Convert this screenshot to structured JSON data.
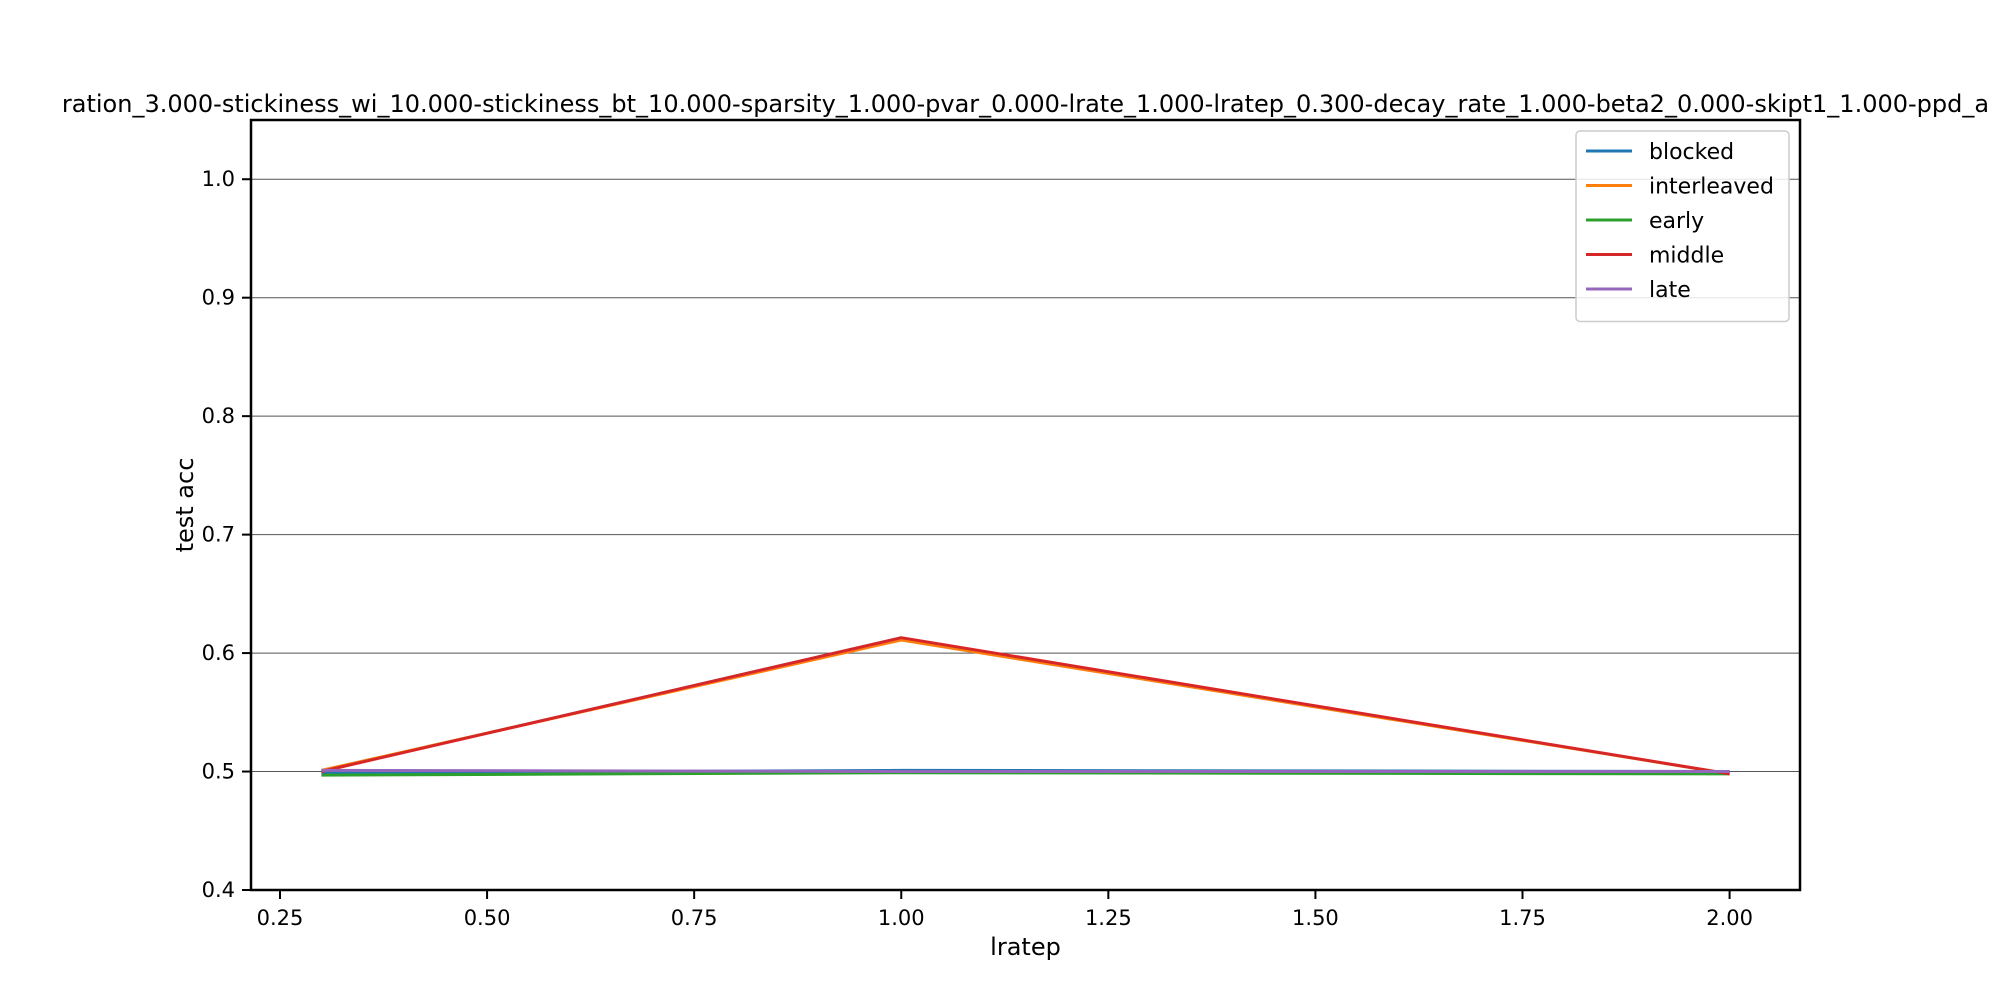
{
  "chart_data": {
    "type": "line",
    "title": "ration_3.000-stickiness_wi_10.000-stickiness_bt_10.000-sparsity_1.000-pvar_0.000-lrate_1.000-lratep_0.300-decay_rate_1.000-beta2_0.000-skipt1_1.000-ppd_a",
    "xlabel": "lratep",
    "ylabel": "test acc",
    "xlim": [
      0.215,
      2.085
    ],
    "ylim": [
      0.4,
      1.05
    ],
    "x_ticks": [
      "0.25",
      "0.50",
      "0.75",
      "1.00",
      "1.25",
      "1.50",
      "1.75",
      "2.00"
    ],
    "y_ticks": [
      "0.4",
      "0.5",
      "0.6",
      "0.7",
      "0.8",
      "0.9",
      "1.0"
    ],
    "grid": "horizontal",
    "legend_position": "top-right",
    "x": [
      0.3,
      1.0,
      2.0
    ],
    "series": [
      {
        "name": "blocked",
        "color": "#1f77b4",
        "values": [
          0.499,
          0.501,
          0.5
        ]
      },
      {
        "name": "interleaved",
        "color": "#ff7f0e",
        "values": [
          0.501,
          0.611,
          0.498
        ]
      },
      {
        "name": "early",
        "color": "#2ca02c",
        "values": [
          0.497,
          0.499,
          0.498
        ]
      },
      {
        "name": "middle",
        "color": "#d62728",
        "values": [
          0.5,
          0.613,
          0.498
        ]
      },
      {
        "name": "late",
        "color": "#9467bd",
        "values": [
          0.501,
          0.5,
          0.5
        ]
      }
    ]
  }
}
